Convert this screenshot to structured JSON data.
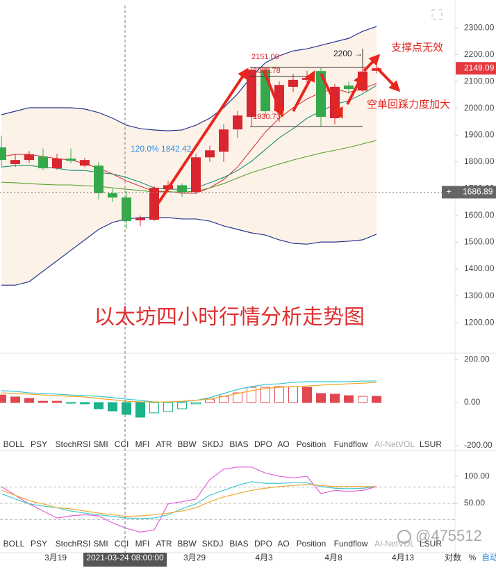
{
  "chart_data": [
    {
      "type": "candlestick",
      "title": "以太坊四小时行情分析走势图",
      "up_color": "#d9252f",
      "down_color": "#34a94b",
      "open": [
        1854,
        1792,
        1807,
        1820,
        1776,
        1812,
        1786,
        1786,
        1683,
        1667,
        1582,
        1584,
        1698,
        1713,
        1688,
        1817,
        1838,
        1921,
        1968,
        2144,
        1989,
        2080,
        2106,
        2139,
        1963,
        2085,
        2066,
        2140
      ],
      "close": [
        1807,
        1807,
        1828,
        1776,
        1812,
        1804,
        1807,
        1683,
        1667,
        1579,
        1590,
        1703,
        1713,
        1688,
        1817,
        1843,
        1921,
        1973,
        2144,
        1989,
        2087,
        2106,
        2113,
        1968,
        2080,
        2072,
        2137,
        2149.09
      ],
      "high": [
        1898,
        1828,
        1840,
        1850,
        1830,
        1850,
        1815,
        1800,
        1700,
        1690,
        1600,
        1710,
        1730,
        1720,
        1830,
        1860,
        1940,
        1990,
        2151,
        2151,
        2100,
        2130,
        2140,
        2150,
        2090,
        2100,
        2200,
        2180
      ],
      "low": [
        1784,
        1781,
        1795,
        1770,
        1770,
        1795,
        1780,
        1660,
        1650,
        1550,
        1560,
        1580,
        1690,
        1670,
        1680,
        1800,
        1800,
        1890,
        1930.73,
        1970,
        1950,
        2060,
        2080,
        1930,
        1940,
        2055,
        2060,
        2130
      ],
      "band": {
        "color": "#27358f",
        "fill": "#fdf2e8",
        "upper": [
          1976,
          1989,
          2002,
          2002,
          2002,
          2002,
          1997,
          1984,
          1963,
          1937,
          1924,
          1919,
          1916,
          1919,
          1937,
          1963,
          2002,
          2054,
          2118,
          2170,
          2196,
          2214,
          2222,
          2235,
          2248,
          2261,
          2287,
          2305
        ],
        "lower": [
          1340,
          1340,
          1353,
          1392,
          1431,
          1470,
          1509,
          1548,
          1574,
          1587,
          1592,
          1592,
          1592,
          1587,
          1587,
          1579,
          1561,
          1548,
          1535,
          1527,
          1509,
          1496,
          1493,
          1501,
          1501,
          1504,
          1509,
          1530
        ]
      },
      "lines": [
        {
          "color": "#d9393f",
          "values": [
            1820,
            1828,
            1828,
            1820,
            1812,
            1807,
            1794,
            1776,
            1755,
            1729,
            1709,
            1690,
            1690,
            1683,
            1683,
            1703,
            1734,
            1781,
            1846,
            1911,
            1963,
            2002,
            2035,
            2059,
            2072,
            2059,
            2074,
            2092
          ]
        },
        {
          "color": "#1a8f7a",
          "values": [
            1781,
            1786,
            1786,
            1781,
            1776,
            1768,
            1768,
            1760,
            1755,
            1742,
            1724,
            1703,
            1698,
            1698,
            1703,
            1722,
            1742,
            1768,
            1802,
            1846,
            1890,
            1924,
            1963,
            1989,
            2015,
            2028,
            2054,
            2085
          ]
        },
        {
          "color": "#5aa02c",
          "values": [
            1724,
            1722,
            1719,
            1716,
            1714,
            1714,
            1711,
            1709,
            1703,
            1698,
            1693,
            1688,
            1688,
            1688,
            1690,
            1703,
            1719,
            1740,
            1760,
            1776,
            1792,
            1807,
            1820,
            1833,
            1843,
            1854,
            1867,
            1880
          ]
        }
      ],
      "ylim": [
        1094,
        2404
      ],
      "yticks": [
        {
          "value": 2300,
          "label": "2300.00"
        },
        {
          "value": 2200,
          "label": "2200.00"
        },
        {
          "value": 2100,
          "label": "2100.00"
        },
        {
          "value": 2000,
          "label": "2000.00"
        },
        {
          "value": 1900,
          "label": "1900.00"
        },
        {
          "value": 1800,
          "label": "1800.00"
        },
        {
          "value": 1700,
          "label": "1700.00"
        },
        {
          "value": 1600,
          "label": "1600.00"
        },
        {
          "value": 1500,
          "label": "1500.00"
        },
        {
          "value": 1400,
          "label": "1400.00"
        },
        {
          "value": 1300,
          "label": "1300.00"
        },
        {
          "value": 1200,
          "label": "1200.00"
        }
      ],
      "last_price": 2149.09,
      "crosshair_price": 1686.89,
      "x_labels": [
        "3月19",
        "2021-03-24 08:00:00",
        "3月29",
        "4月3",
        "4月8",
        "4月13"
      ],
      "annotations": {
        "high": "2151.00",
        "mid": "2098.78",
        "low": "1930.73",
        "fib": "120.0% 1842.42",
        "target": "2200 →",
        "note_1": "支撑点无效",
        "note_2": "空单回踩力度加大"
      }
    },
    {
      "type": "bar",
      "pos_color": "#e0474f",
      "neg_color": "#1ab38c",
      "values": [
        35,
        26,
        19,
        6,
        6,
        -3,
        -6,
        -29,
        -39,
        -55,
        -68,
        -48,
        -42,
        -29,
        -6,
        16,
        29,
        45,
        71,
        71,
        74,
        74,
        71,
        42,
        39,
        32,
        29,
        29
      ],
      "filled": [
        true,
        true,
        true,
        true,
        true,
        true,
        true,
        true,
        true,
        true,
        true,
        false,
        false,
        false,
        false,
        false,
        false,
        false,
        false,
        false,
        false,
        false,
        true,
        true,
        true,
        true,
        false,
        true
      ],
      "lines": [
        {
          "color": "#35c4d0",
          "values": [
            55,
            52,
            45,
            42,
            39,
            35,
            32,
            29,
            23,
            16,
            10,
            3,
            3,
            3,
            10,
            23,
            42,
            61,
            74,
            84,
            87,
            94,
            97,
            97,
            97,
            97,
            100,
            100
          ]
        },
        {
          "color": "#f5a623",
          "values": [
            45,
            42,
            39,
            35,
            32,
            29,
            26,
            19,
            13,
            6,
            3,
            3,
            3,
            6,
            10,
            16,
            29,
            42,
            55,
            65,
            71,
            74,
            77,
            81,
            84,
            87,
            90,
            94
          ]
        }
      ],
      "ylim": [
        -223,
        223
      ],
      "yticks": [
        {
          "value": 200,
          "label": "200.00"
        },
        {
          "value": 0,
          "label": "0.00"
        },
        {
          "value": -200,
          "label": "-200.00"
        }
      ]
    },
    {
      "type": "line",
      "series": [
        {
          "color": "#e060d8",
          "values": [
            81,
            65,
            49,
            36,
            23,
            27,
            29,
            27,
            14,
            4,
            -3,
            1,
            49,
            53,
            58,
            94,
            113,
            117,
            117,
            106,
            100,
            97,
            100,
            68,
            74,
            72,
            74,
            81
          ]
        },
        {
          "color": "#40c8d0",
          "values": [
            68,
            58,
            49,
            45,
            42,
            36,
            32,
            29,
            26,
            23,
            22,
            23,
            29,
            40,
            49,
            65,
            74,
            83,
            90,
            87,
            87,
            88,
            88,
            81,
            78,
            77,
            78,
            81
          ]
        },
        {
          "color": "#f0a830",
          "values": [
            74,
            65,
            55,
            49,
            42,
            40,
            36,
            32,
            29,
            26,
            27,
            29,
            32,
            36,
            42,
            53,
            62,
            68,
            74,
            78,
            81,
            83,
            85,
            83,
            81,
            81,
            81,
            81
          ]
        }
      ],
      "ref_lines": [
        80,
        50,
        20
      ],
      "ylim": [
        -41,
        145
      ],
      "yticks": [
        {
          "value": 100,
          "label": "100.00"
        },
        {
          "value": 50,
          "label": "50.00"
        }
      ]
    }
  ],
  "tabs": [
    "BOLL",
    "PSY",
    "StochRSI",
    "SMI",
    "CCI",
    "MFI",
    "ATR",
    "BBW",
    "SKDJ",
    "BIAS",
    "DPO",
    "AO",
    "Position",
    "Fundflow",
    "AI-NetVOL",
    "LSUR"
  ],
  "footer": {
    "log": "对数",
    "percent": "%",
    "auto": "自动",
    "watermark": "@475512"
  }
}
